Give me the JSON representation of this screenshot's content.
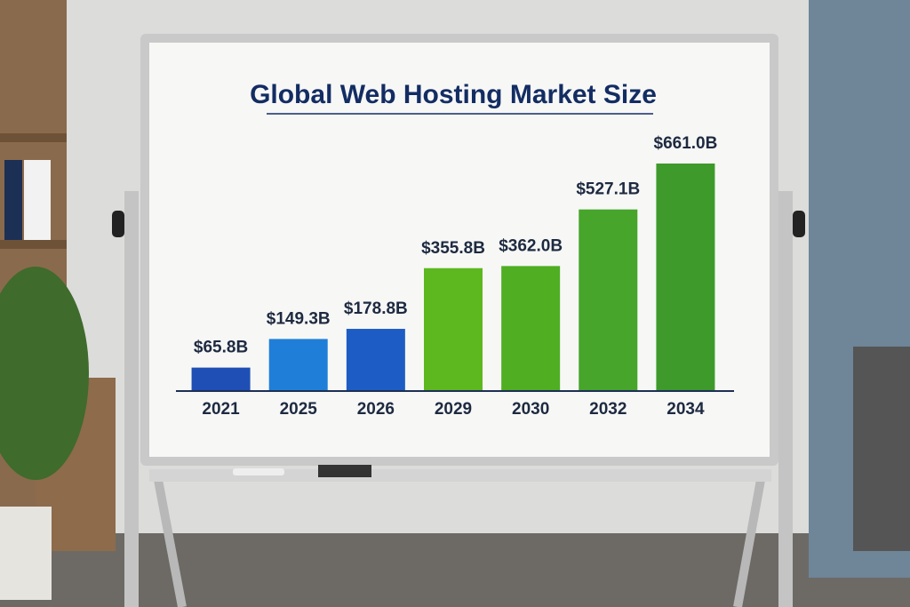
{
  "chart_data": {
    "type": "bar",
    "title": "Global Web Hosting Market Size",
    "categories": [
      "2021",
      "2025",
      "2026",
      "2029",
      "2030",
      "2032",
      "2034"
    ],
    "values": [
      65.8,
      149.3,
      178.8,
      355.8,
      362.0,
      527.1,
      661.0
    ],
    "value_labels": [
      "$65.8B",
      "$149.3B",
      "$178.8B",
      "$355.8B",
      "$362.0B",
      "$527.1B",
      "$661.0B"
    ],
    "colors": [
      "#1f4fb5",
      "#1f7fd8",
      "#1d5cc4",
      "#5cb81e",
      "#4fae22",
      "#46a52a",
      "#3e9a2a"
    ]
  }
}
